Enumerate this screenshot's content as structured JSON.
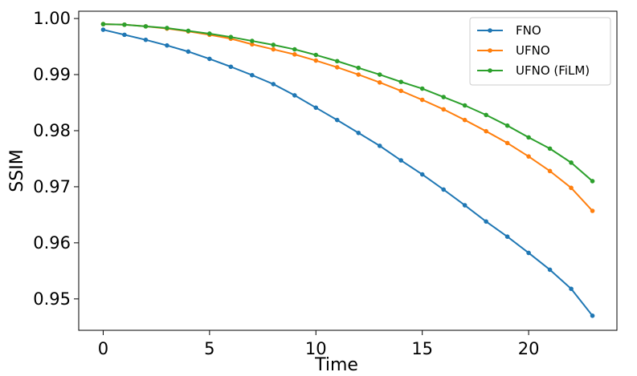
{
  "chart_data": {
    "type": "line",
    "xlabel": "Time",
    "ylabel": "SSIM",
    "xlim": [
      -1.15,
      24.15
    ],
    "ylim": [
      0.9444,
      1.0013
    ],
    "xticks": [
      0,
      5,
      10,
      15,
      20
    ],
    "xtick_labels": [
      "0",
      "5",
      "10",
      "15",
      "20"
    ],
    "yticks": [
      0.95,
      0.96,
      0.97,
      0.98,
      0.99,
      1.0
    ],
    "ytick_labels": [
      "0.95",
      "0.96",
      "0.97",
      "0.98",
      "0.99",
      "1.00"
    ],
    "grid": false,
    "legend_position": "top-right",
    "x": [
      0,
      1,
      2,
      3,
      4,
      5,
      6,
      7,
      8,
      9,
      10,
      11,
      12,
      13,
      14,
      15,
      16,
      17,
      18,
      19,
      20,
      21,
      22,
      23
    ],
    "series": [
      {
        "name": "FNO",
        "color": "#1f77b4",
        "values": [
          0.998,
          0.9971,
          0.9962,
          0.9952,
          0.9941,
          0.9928,
          0.9914,
          0.9899,
          0.9883,
          0.9863,
          0.9841,
          0.9819,
          0.9796,
          0.9773,
          0.9747,
          0.9722,
          0.9695,
          0.9667,
          0.9638,
          0.9611,
          0.9582,
          0.9552,
          0.9518,
          0.947
        ]
      },
      {
        "name": "UFNO",
        "color": "#ff7f0e",
        "values": [
          0.999,
          0.9989,
          0.9986,
          0.9982,
          0.9977,
          0.9971,
          0.9964,
          0.9954,
          0.9945,
          0.9936,
          0.9925,
          0.9913,
          0.99,
          0.9886,
          0.9871,
          0.9855,
          0.9838,
          0.9819,
          0.9799,
          0.9778,
          0.9754,
          0.9728,
          0.9698,
          0.9657
        ]
      },
      {
        "name": "UFNO (FiLM)",
        "color": "#2ca02c",
        "values": [
          0.999,
          0.9989,
          0.9986,
          0.9983,
          0.9978,
          0.9973,
          0.9967,
          0.996,
          0.9953,
          0.9945,
          0.9935,
          0.9924,
          0.9912,
          0.99,
          0.9887,
          0.9875,
          0.986,
          0.9845,
          0.9828,
          0.9809,
          0.9788,
          0.9768,
          0.9743,
          0.971
        ]
      }
    ]
  }
}
